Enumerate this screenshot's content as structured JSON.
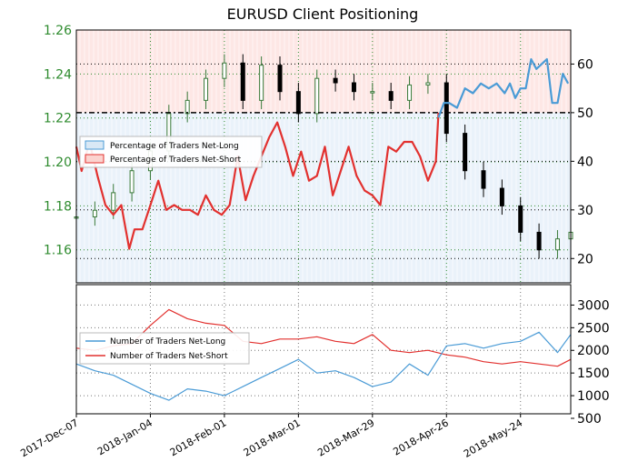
{
  "title": "EURUSD Client Positioning",
  "colors": {
    "net_long": "#4a9bd6",
    "net_short": "#e2312f",
    "net_long_fill": "#d9e8f5",
    "net_short_fill": "#fbd3cf",
    "candle_up": "#3a7a3a",
    "candle_down": "#000000",
    "left_tick": "#2e8b2e",
    "grid_green": "#2e8b2e"
  },
  "chart_data": [
    {
      "type": "line",
      "panel": "top",
      "title": "EURUSD Client Positioning",
      "x_ticks": [
        "2017-Dec-07",
        "2018-Jan-04",
        "2018-Feb-01",
        "2018-Mar-01",
        "2018-Mar-29",
        "2018-Apr-26",
        "2018-May-24"
      ],
      "left_axis": {
        "ylim": [
          1.145,
          1.26
        ],
        "ticks": [
          "1.16",
          "1.18",
          "1.20",
          "1.22",
          "1.24",
          "1.26"
        ]
      },
      "right_axis": {
        "ylim": [
          15,
          67
        ],
        "ticks": [
          "20",
          "30",
          "40",
          "50",
          "60"
        ]
      },
      "reference_line": 50,
      "grid": true,
      "legend": {
        "position": "upper-left",
        "entries": [
          "Percentage of Traders Net-Long",
          "Percentage of Traders Net-Short"
        ]
      },
      "series": [
        {
          "name": "Percentage of Traders Net-Long",
          "axis": "right",
          "x": [
            "2018-Apr-23",
            "2018-Apr-25",
            "2018-Apr-27",
            "2018-Apr-30",
            "2018-May-03",
            "2018-May-06",
            "2018-May-09",
            "2018-May-12",
            "2018-May-15",
            "2018-May-18",
            "2018-May-20",
            "2018-May-22",
            "2018-May-24",
            "2018-May-26",
            "2018-May-28",
            "2018-May-30",
            "2018-Jun-01",
            "2018-Jun-03",
            "2018-Jun-05",
            "2018-Jun-07",
            "2018-Jun-09",
            "2018-Jun-11"
          ],
          "values": [
            49,
            52,
            52,
            51,
            55,
            54,
            56,
            55,
            56,
            54,
            56,
            53,
            55,
            55,
            61,
            59,
            60,
            61,
            52,
            52,
            58,
            56
          ]
        },
        {
          "name": "Percentage of Traders Net-Short",
          "axis": "right",
          "x": [
            "2017-Dec-07",
            "2017-Dec-09",
            "2017-Dec-12",
            "2017-Dec-15",
            "2017-Dec-18",
            "2017-Dec-21",
            "2017-Dec-24",
            "2017-Dec-27",
            "2017-Dec-29",
            "2018-Jan-01",
            "2018-Jan-04",
            "2018-Jan-07",
            "2018-Jan-10",
            "2018-Jan-13",
            "2018-Jan-16",
            "2018-Jan-19",
            "2018-Jan-22",
            "2018-Jan-25",
            "2018-Jan-28",
            "2018-Jan-31",
            "2018-Feb-03",
            "2018-Feb-06",
            "2018-Feb-09",
            "2018-Feb-12",
            "2018-Feb-15",
            "2018-Feb-18",
            "2018-Feb-21",
            "2018-Feb-24",
            "2018-Feb-27",
            "2018-Mar-02",
            "2018-Mar-05",
            "2018-Mar-08",
            "2018-Mar-11",
            "2018-Mar-14",
            "2018-Mar-17",
            "2018-Mar-20",
            "2018-Mar-23",
            "2018-Mar-26",
            "2018-Mar-29",
            "2018-Apr-01",
            "2018-Apr-04",
            "2018-Apr-07",
            "2018-Apr-10",
            "2018-Apr-13",
            "2018-Apr-16",
            "2018-Apr-19",
            "2018-Apr-22",
            "2018-Apr-23"
          ],
          "values": [
            43,
            38,
            44,
            37,
            31,
            29,
            31,
            22,
            26,
            26,
            31,
            36,
            30,
            31,
            30,
            30,
            29,
            33,
            30,
            29,
            31,
            41,
            32,
            37,
            41,
            45,
            48,
            43,
            37,
            42,
            36,
            37,
            43,
            33,
            38,
            43,
            37,
            34,
            33,
            31,
            43,
            42,
            44,
            44,
            41,
            36,
            40,
            50
          ]
        },
        {
          "name": "EURUSD",
          "axis": "left",
          "style": "candlestick",
          "x": [
            "2017-Dec-07",
            "2017-Dec-14",
            "2017-Dec-21",
            "2017-Dec-28",
            "2018-Jan-04",
            "2018-Jan-11",
            "2018-Jan-18",
            "2018-Jan-25",
            "2018-Feb-01",
            "2018-Feb-08",
            "2018-Feb-15",
            "2018-Feb-22",
            "2018-Mar-01",
            "2018-Mar-08",
            "2018-Mar-15",
            "2018-Mar-22",
            "2018-Mar-29",
            "2018-Apr-05",
            "2018-Apr-12",
            "2018-Apr-19",
            "2018-Apr-26",
            "2018-May-03",
            "2018-May-10",
            "2018-May-17",
            "2018-May-24",
            "2018-May-31",
            "2018-Jun-07",
            "2018-Jun-12"
          ],
          "values": [
            1.175,
            1.178,
            1.186,
            1.196,
            1.205,
            1.222,
            1.228,
            1.238,
            1.245,
            1.228,
            1.244,
            1.232,
            1.222,
            1.238,
            1.236,
            1.232,
            1.232,
            1.228,
            1.235,
            1.236,
            1.213,
            1.196,
            1.188,
            1.18,
            1.168,
            1.16,
            1.165,
            1.168
          ]
        }
      ]
    },
    {
      "type": "line",
      "panel": "bottom",
      "y_axis": {
        "ylim": [
          600,
          3450
        ],
        "ticks": [
          "500",
          "1000",
          "1500",
          "2000",
          "2500",
          "3000"
        ]
      },
      "grid": true,
      "legend": {
        "position": "middle-left",
        "entries": [
          "Number of Traders Net-Long",
          "Number of Traders Net-Short"
        ]
      },
      "series": [
        {
          "name": "Number of Traders Net-Long",
          "x": [
            "2017-Dec-07",
            "2017-Dec-14",
            "2017-Dec-21",
            "2017-Dec-28",
            "2018-Jan-04",
            "2018-Jan-11",
            "2018-Jan-18",
            "2018-Jan-25",
            "2018-Feb-01",
            "2018-Feb-08",
            "2018-Feb-15",
            "2018-Feb-22",
            "2018-Mar-01",
            "2018-Mar-08",
            "2018-Mar-15",
            "2018-Mar-22",
            "2018-Mar-29",
            "2018-Apr-05",
            "2018-Apr-12",
            "2018-Apr-19",
            "2018-Apr-26",
            "2018-May-03",
            "2018-May-10",
            "2018-May-17",
            "2018-May-24",
            "2018-May-31",
            "2018-Jun-07",
            "2018-Jun-12"
          ],
          "values": [
            1700,
            1550,
            1450,
            1250,
            1050,
            900,
            1150,
            1100,
            1000,
            1200,
            1400,
            1600,
            1800,
            1500,
            1550,
            1400,
            1200,
            1300,
            1700,
            1450,
            2100,
            2150,
            2050,
            2150,
            2200,
            2400,
            1950,
            2350
          ]
        },
        {
          "name": "Number of Traders Net-Short",
          "x": [
            "2017-Dec-07",
            "2017-Dec-14",
            "2017-Dec-21",
            "2017-Dec-28",
            "2018-Jan-04",
            "2018-Jan-11",
            "2018-Jan-18",
            "2018-Jan-25",
            "2018-Feb-01",
            "2018-Feb-08",
            "2018-Feb-15",
            "2018-Feb-22",
            "2018-Mar-01",
            "2018-Mar-08",
            "2018-Mar-15",
            "2018-Mar-22",
            "2018-Mar-29",
            "2018-Apr-05",
            "2018-Apr-12",
            "2018-Apr-19",
            "2018-Apr-26",
            "2018-May-03",
            "2018-May-10",
            "2018-May-17",
            "2018-May-24",
            "2018-May-31",
            "2018-Jun-07",
            "2018-Jun-12"
          ],
          "values": [
            2050,
            2000,
            2100,
            2150,
            2550,
            2900,
            2700,
            2600,
            2550,
            2200,
            2150,
            2250,
            2250,
            2300,
            2200,
            2150,
            2350,
            2000,
            1950,
            2000,
            1900,
            1850,
            1750,
            1700,
            1750,
            1700,
            1650,
            1800
          ]
        }
      ]
    }
  ]
}
